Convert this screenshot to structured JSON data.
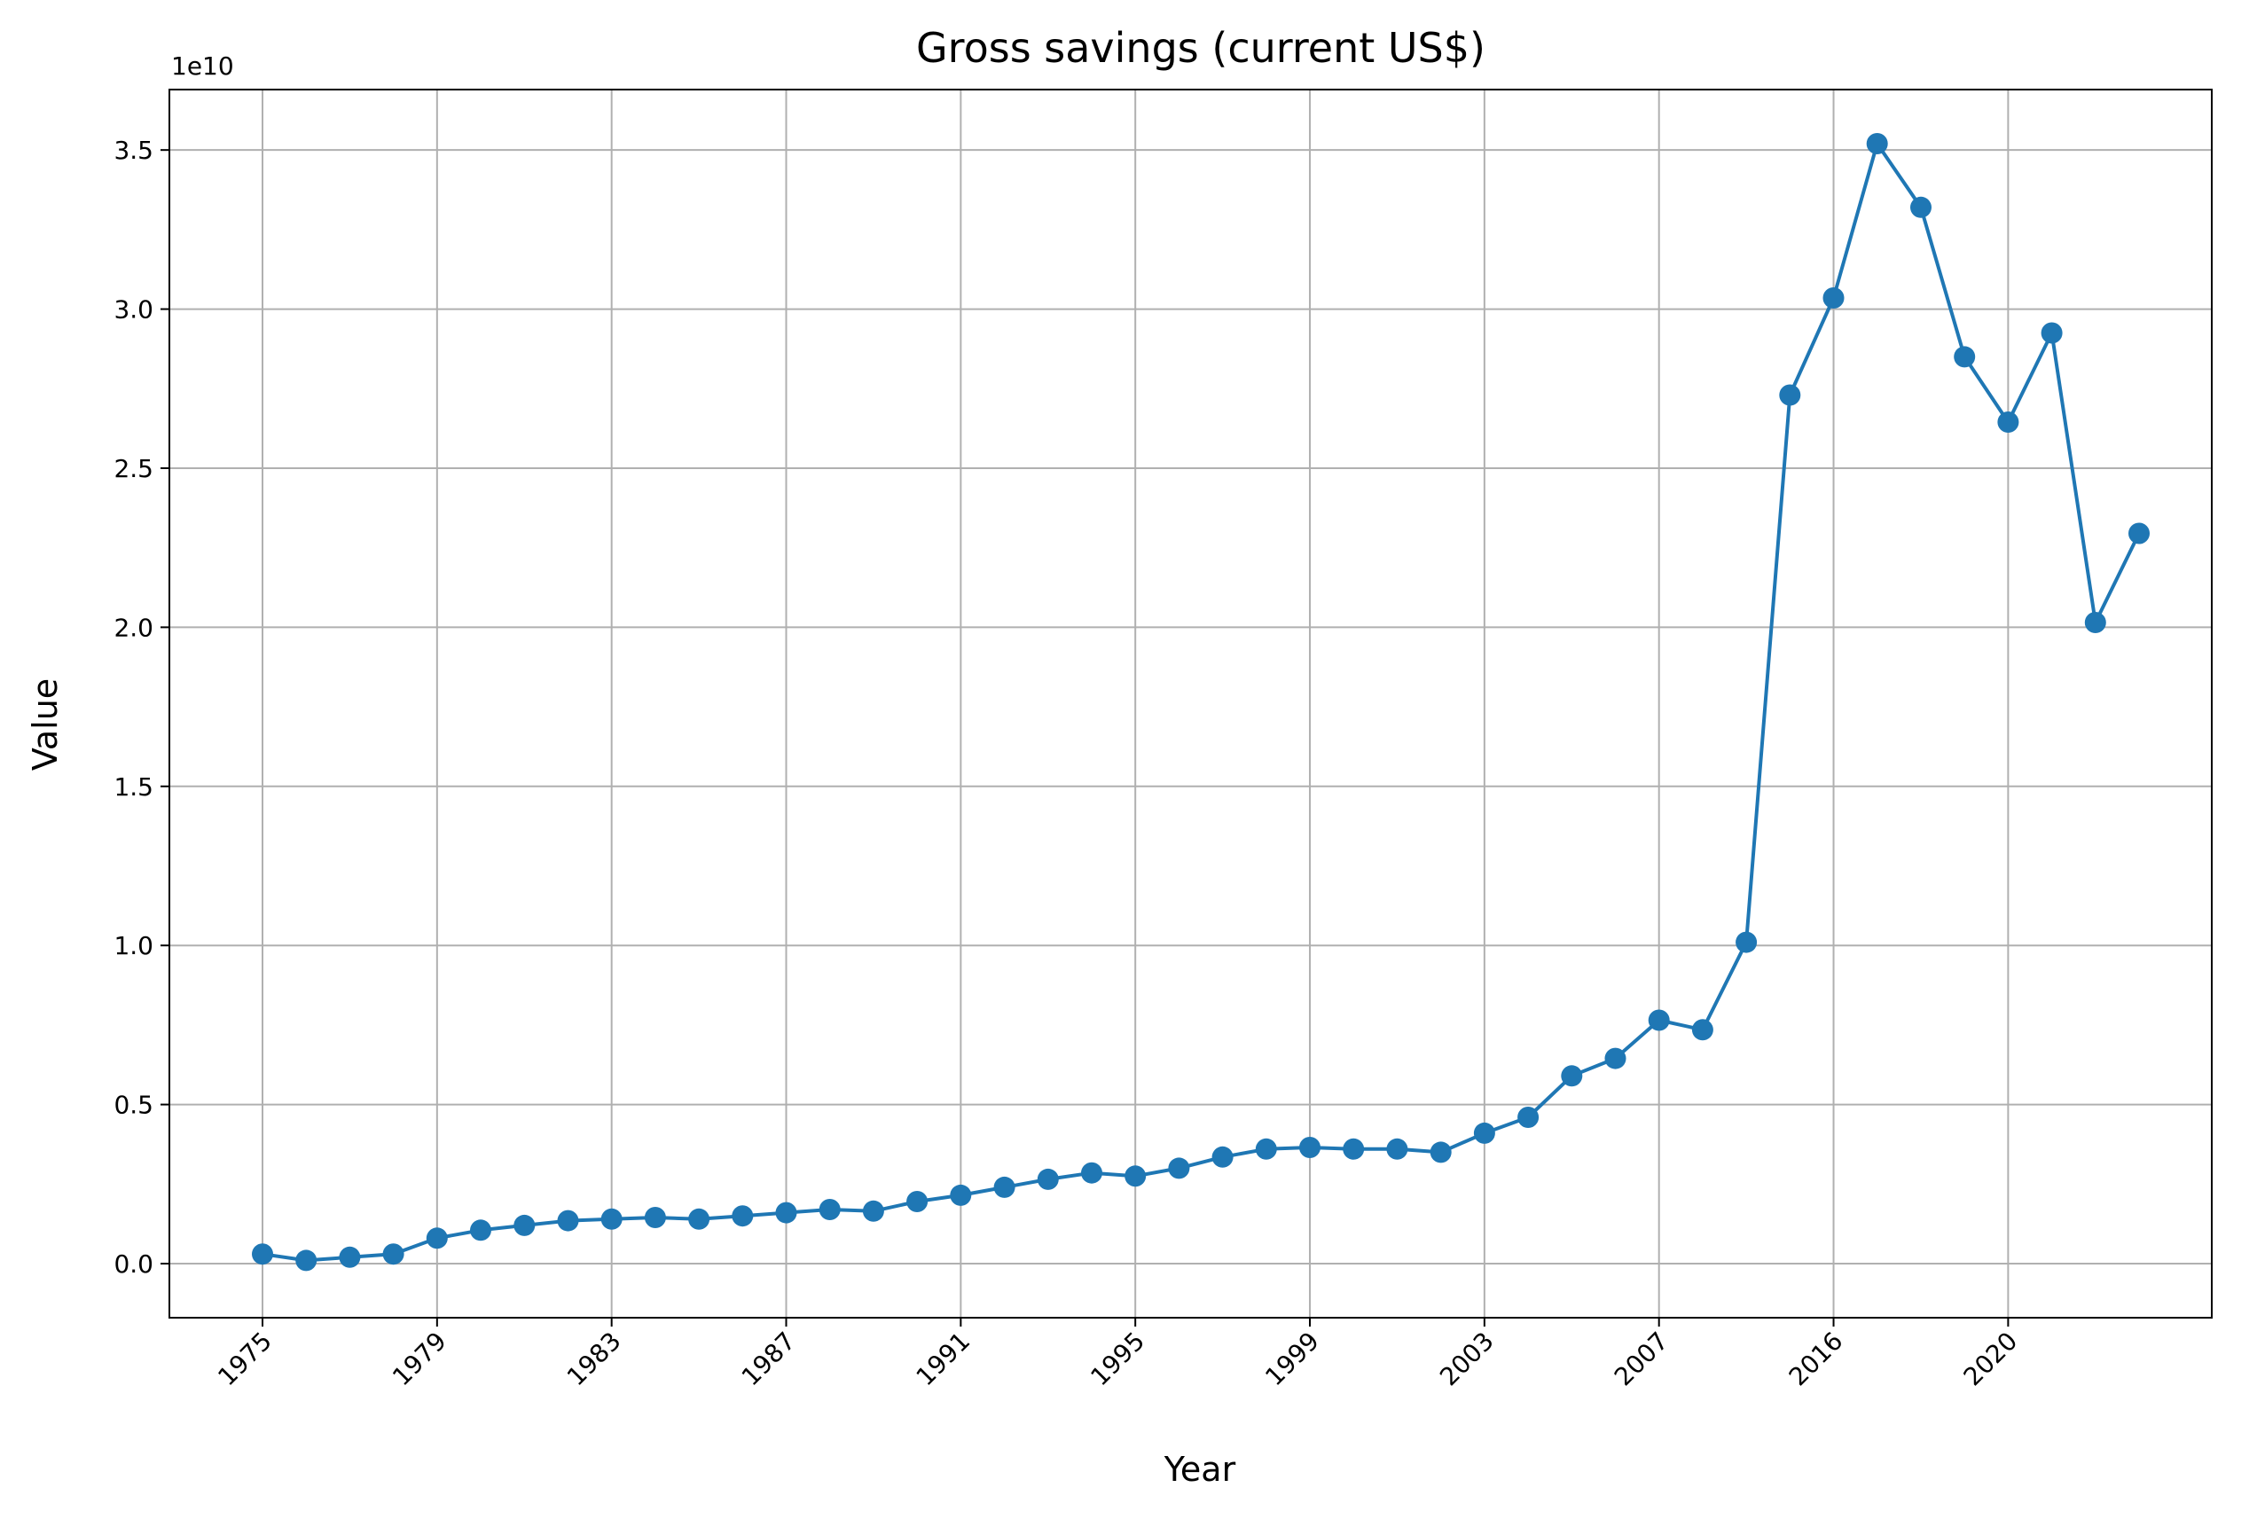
{
  "chart_data": {
    "type": "line",
    "title": "Gross savings (current US$)",
    "xlabel": "Year",
    "ylabel": "Value",
    "y_offset_label": "1e10",
    "y_multiplier": 10000000000,
    "ylim": [
      -0.17,
      3.69
    ],
    "yticks": [
      0.0,
      0.5,
      1.0,
      1.5,
      2.0,
      2.5,
      3.0,
      3.5
    ],
    "ytick_labels": [
      "0.0",
      "0.5",
      "1.0",
      "1.5",
      "2.0",
      "2.5",
      "3.0",
      "3.5"
    ],
    "xtick_labels": [
      "1975",
      "1979",
      "1983",
      "1987",
      "1991",
      "1995",
      "1999",
      "2003",
      "2007",
      "2016",
      "2020"
    ],
    "xtick_every": 4,
    "grid": true,
    "marker": "circle",
    "color": "#1f77b4",
    "series": [
      {
        "values": [
          0.03,
          0.01,
          0.02,
          0.03,
          0.08,
          0.105,
          0.12,
          0.135,
          0.14,
          0.145,
          0.14,
          0.15,
          0.16,
          0.17,
          0.165,
          0.195,
          0.215,
          0.24,
          0.265,
          0.285,
          0.275,
          0.3,
          0.335,
          0.36,
          0.365,
          0.36,
          0.36,
          0.35,
          0.41,
          0.46,
          0.59,
          0.645,
          0.765,
          0.735,
          1.01,
          2.73,
          3.035,
          3.52,
          3.32,
          2.85,
          2.645,
          2.925,
          2.015,
          2.295
        ]
      }
    ]
  }
}
